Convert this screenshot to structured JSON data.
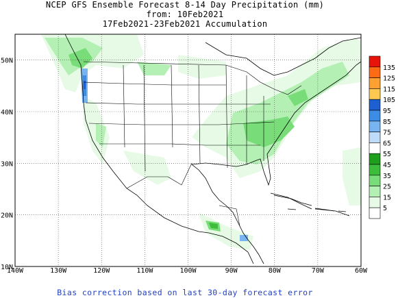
{
  "title": {
    "line1": "NCEP GFS Ensemble Forecast 8-14 Day Precipitation (mm)",
    "line2": "from: 10Feb2021",
    "line3": "17Feb2021-23Feb2021 Accumulation"
  },
  "footer": "Bias correction based on last 30-day forecast error",
  "axes": {
    "lon_labels": [
      "140W",
      "130W",
      "120W",
      "110W",
      "100W",
      "90W",
      "80W",
      "70W",
      "60W"
    ],
    "lat_labels": [
      "10N",
      "20N",
      "30N",
      "40N",
      "50N"
    ]
  },
  "legend": {
    "labels": [
      "135",
      "125",
      "115",
      "105",
      "95",
      "85",
      "75",
      "65",
      "55",
      "45",
      "35",
      "25",
      "15",
      "5"
    ],
    "colors": [
      "#e8140a",
      "#ff6a14",
      "#ffa032",
      "#ffc850",
      "#1e5fd2",
      "#3c8ce6",
      "#78b4f0",
      "#bedcfa",
      "#ffffff",
      "#1ea01e",
      "#3cbe3c",
      "#78dc78",
      "#b4f0b4",
      "#e6fae6",
      "#ffffff"
    ]
  },
  "map": {
    "extent": {
      "lon_min": -140,
      "lon_max": -60,
      "lat_min": 10,
      "lat_max": 55
    },
    "gridlines": "dotted",
    "land_color": "#ffffff"
  }
}
